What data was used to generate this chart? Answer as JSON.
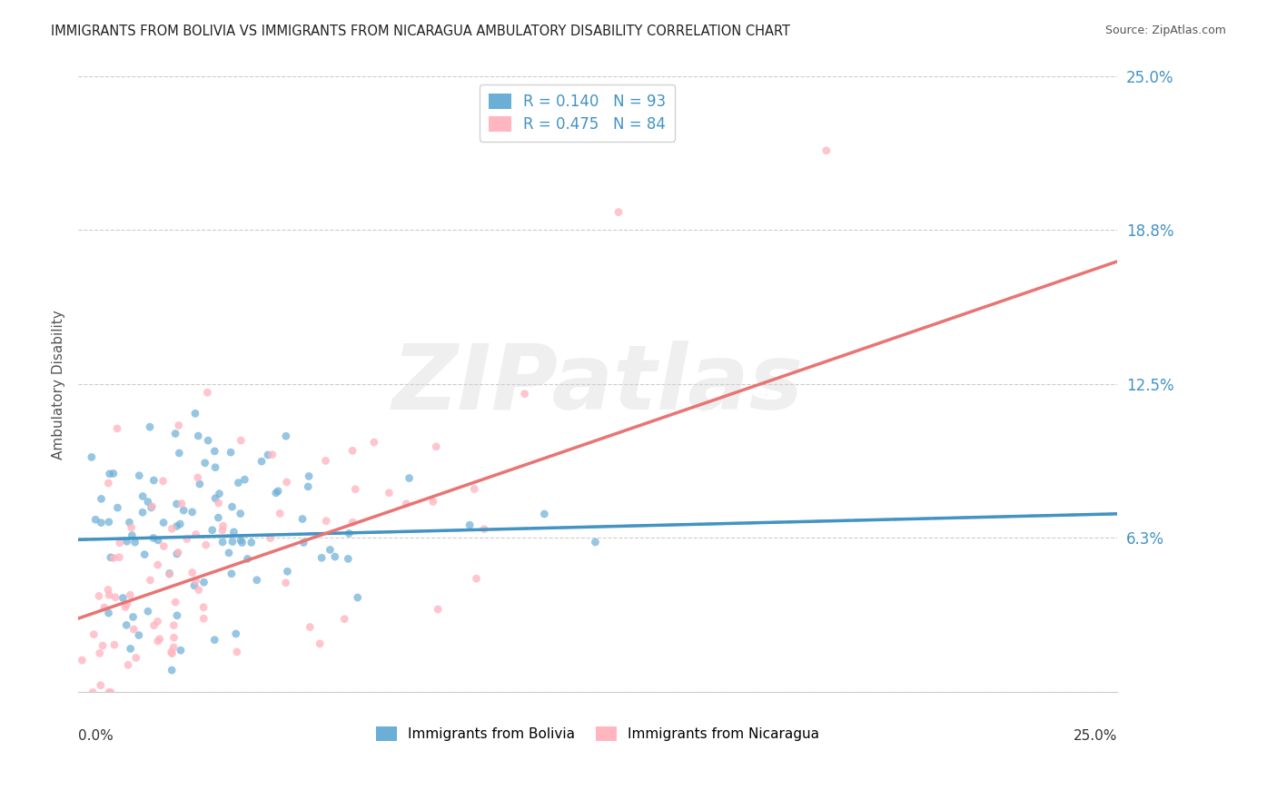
{
  "title": "IMMIGRANTS FROM BOLIVIA VS IMMIGRANTS FROM NICARAGUA AMBULATORY DISABILITY CORRELATION CHART",
  "source": "Source: ZipAtlas.com",
  "ylabel": "Ambulatory Disability",
  "watermark": "ZIPatlas",
  "legend_entries": [
    {
      "label": "R = 0.140   N = 93",
      "color": "#6baed6"
    },
    {
      "label": "R = 0.475   N = 84",
      "color": "#fb9a99"
    }
  ],
  "legend_bottom": [
    {
      "label": "Immigrants from Bolivia",
      "color": "#6baed6"
    },
    {
      "label": "Immigrants from Nicaragua",
      "color": "#fb9a99"
    }
  ],
  "bolivia_R": 0.14,
  "bolivia_N": 93,
  "bolivia_intercept": 0.062,
  "bolivia_slope": 0.042,
  "nicaragua_R": 0.475,
  "nicaragua_N": 84,
  "nicaragua_intercept": 0.03,
  "nicaragua_slope": 0.58,
  "xmin": 0.0,
  "xmax": 0.25,
  "ymin": 0.0,
  "ymax": 0.25,
  "yticks": [
    0.0,
    0.063,
    0.125,
    0.188,
    0.25
  ],
  "ytick_labels": [
    "",
    "6.3%",
    "12.5%",
    "18.8%",
    "25.0%"
  ],
  "grid_color": "#cccccc",
  "background_color": "#ffffff",
  "bolivia_scatter_color": "#6baed6",
  "nicaragua_scatter_color": "#ffb6c1",
  "bolivia_line_color": "#4393c3",
  "nicaragua_line_color": "#e87474",
  "title_fontsize": 11,
  "axis_label_fontsize": 10,
  "tick_fontsize": 10
}
